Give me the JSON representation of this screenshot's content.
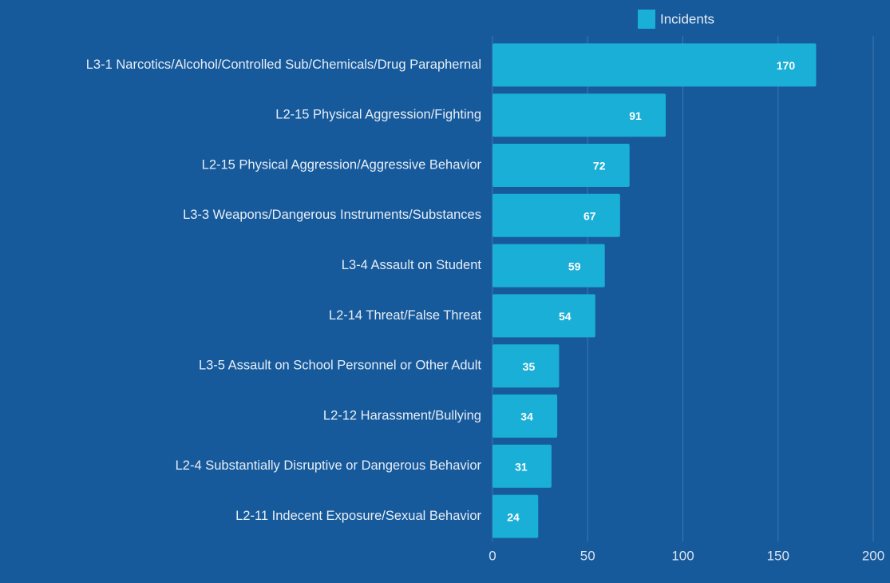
{
  "chart_data": {
    "type": "bar",
    "orientation": "horizontal",
    "categories": [
      "L3-1 Narcotics/Alcohol/Controlled Sub/Chemicals/Drug Paraphernal",
      "L2-15 Physical Aggression/Fighting",
      "L2-15 Physical Aggression/Aggressive Behavior",
      "L3-3 Weapons/Dangerous Instruments/Substances",
      "L3-4 Assault on Student",
      "L2-14 Threat/False Threat",
      "L3-5 Assault on School Personnel or Other Adult",
      "L2-12 Harassment/Bullying",
      "L2-4 Substantially Disruptive or Dangerous Behavior",
      "L2-11 Indecent Exposure/Sexual Behavior"
    ],
    "series": [
      {
        "name": "Incidents",
        "color": "#1aafd6",
        "values": [
          170,
          91,
          72,
          67,
          59,
          54,
          35,
          34,
          31,
          24
        ]
      }
    ],
    "xlim": [
      0,
      200
    ],
    "xticks": [
      0,
      50,
      100,
      150,
      200
    ],
    "grid": true,
    "legend": "top"
  }
}
